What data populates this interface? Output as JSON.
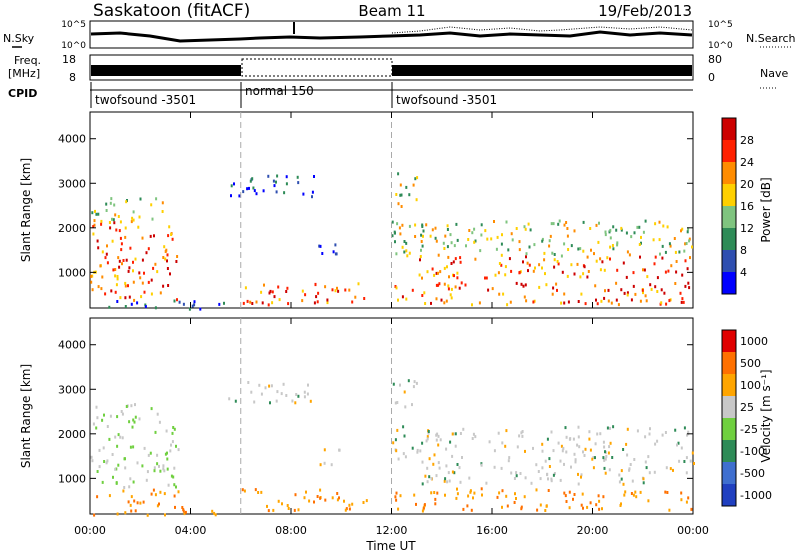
{
  "header": {
    "site": "Saskatoon (fitACF)",
    "beam": "Beam 11",
    "date": "19/Feb/2013"
  },
  "top_panels": {
    "nsky_label": "N.Sky",
    "nsky_ticks": [
      "10^5",
      "10^0"
    ],
    "nsearch_label": "N.Search",
    "nsearch_ticks": [
      "10^5",
      "10^0"
    ],
    "freq_label_1": "Freq.",
    "freq_label_2": "[MHz]",
    "freq_ticks": [
      "18",
      "8"
    ],
    "nave_label": "Nave",
    "nave_ticks": [
      "80",
      "0"
    ],
    "cpid_label": "CPID",
    "cpid_segments": [
      {
        "label": "twofsound -3501",
        "start_hour": 0,
        "end_hour": 6
      },
      {
        "label": "normal 150",
        "start_hour": 6,
        "end_hour": 12
      },
      {
        "label": "twofsound -3501",
        "start_hour": 12,
        "end_hour": 24
      }
    ]
  },
  "chart_data": [
    {
      "type": "heatmap",
      "name": "power",
      "ylabel": "Slant Range [km]",
      "xlabel": "Time UT",
      "xlim": [
        0,
        24
      ],
      "ylim": [
        200,
        4600
      ],
      "yticks": [
        "1000",
        "2000",
        "3000",
        "4000"
      ],
      "xticks": [
        "00:00",
        "04:00",
        "08:00",
        "12:00",
        "16:00",
        "20:00",
        "00:00"
      ],
      "colorbar": {
        "label": "Power [dB]",
        "ticks": [
          "4",
          "8",
          "12",
          "16",
          "20",
          "24",
          "28"
        ],
        "colors": [
          "#0000ff",
          "#2f4fb0",
          "#2e8b57",
          "#7fc47f",
          "#ffd000",
          "#ff8c00",
          "#ff2000",
          "#cc0000"
        ]
      },
      "regions": [
        {
          "t": [
            0,
            3.5
          ],
          "r": [
            400,
            2200
          ],
          "level": "high"
        },
        {
          "t": [
            0,
            3
          ],
          "r": [
            2200,
            2700
          ],
          "level": "mid"
        },
        {
          "t": [
            0,
            5.5
          ],
          "r": [
            200,
            400
          ],
          "level": "low"
        },
        {
          "t": [
            5.5,
            9
          ],
          "r": [
            2700,
            3200
          ],
          "level": "low"
        },
        {
          "t": [
            6,
            11
          ],
          "r": [
            300,
            800
          ],
          "level": "high"
        },
        {
          "t": [
            9,
            10
          ],
          "r": [
            1300,
            1700
          ],
          "level": "low"
        },
        {
          "t": [
            12,
            24
          ],
          "r": [
            300,
            800
          ],
          "level": "high"
        },
        {
          "t": [
            13,
            24
          ],
          "r": [
            900,
            1400
          ],
          "level": "high"
        },
        {
          "t": [
            12,
            24
          ],
          "r": [
            1400,
            2200
          ],
          "level": "mid"
        },
        {
          "t": [
            12,
            13
          ],
          "r": [
            2500,
            3300
          ],
          "level": "mid"
        }
      ]
    },
    {
      "type": "heatmap",
      "name": "velocity",
      "ylabel": "Slant Range [km]",
      "xlabel": "Time UT",
      "xlim": [
        0,
        24
      ],
      "ylim": [
        200,
        4600
      ],
      "yticks": [
        "1000",
        "2000",
        "3000",
        "4000"
      ],
      "xticks": [
        "00:00",
        "04:00",
        "08:00",
        "12:00",
        "16:00",
        "20:00",
        "00:00"
      ],
      "colorbar": {
        "label": "Velocity [m s⁻¹]",
        "ticks": [
          "1000",
          "500",
          "100",
          "25",
          "-25",
          "-100",
          "-500",
          "-1000"
        ],
        "colors": [
          "#2040c0",
          "#3f6fcf",
          "#2e8b57",
          "#6fcf3f",
          "#c8c8c8",
          "#ffa500",
          "#ff7000",
          "#e00000"
        ]
      }
    }
  ]
}
